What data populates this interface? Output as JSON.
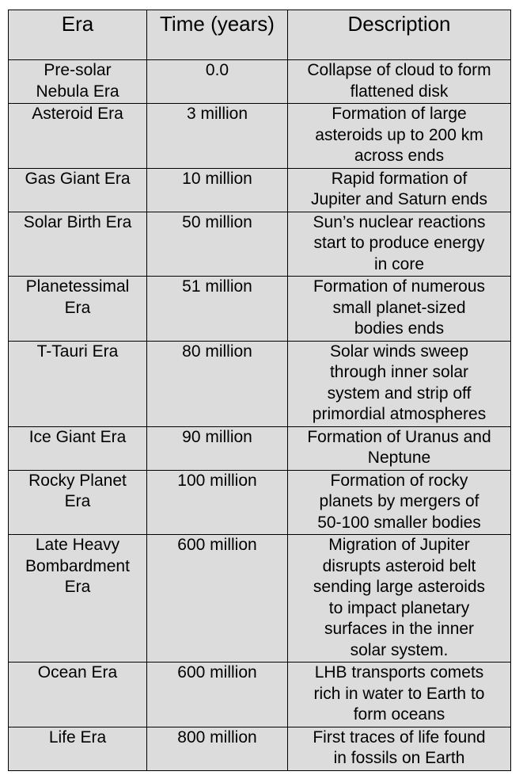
{
  "table": {
    "headers": [
      "Era",
      "Time (years)",
      "Description"
    ],
    "header_lines": [
      [
        "Era"
      ],
      [
        "Time",
        "(years)"
      ],
      [
        "Description"
      ]
    ],
    "rows": [
      {
        "era": [
          "Pre-solar",
          "Nebula Era"
        ],
        "time": "0.0",
        "description": [
          "Collapse of cloud to form",
          "flattened disk"
        ]
      },
      {
        "era": [
          "Asteroid Era"
        ],
        "time": "3 million",
        "description": [
          "Formation of large",
          "asteroids up to 200 km",
          "across ends"
        ]
      },
      {
        "era": [
          "Gas Giant Era"
        ],
        "time": "10 million",
        "description": [
          "Rapid formation of",
          "Jupiter and Saturn ends"
        ]
      },
      {
        "era": [
          "Solar Birth Era"
        ],
        "time": "50 million",
        "description": [
          "Sun’s nuclear reactions",
          "start to produce energy",
          "in core"
        ]
      },
      {
        "era": [
          "Planetessimal",
          "Era"
        ],
        "time": "51 million",
        "description": [
          "Formation of numerous",
          "small planet-sized",
          "bodies ends"
        ]
      },
      {
        "era": [
          "T-Tauri Era"
        ],
        "time": "80 million",
        "description": [
          "Solar winds sweep",
          "through inner solar",
          "system and strip off",
          "primordial atmospheres"
        ]
      },
      {
        "era": [
          "Ice Giant Era"
        ],
        "time": "90 million",
        "description": [
          "Formation of Uranus and",
          "Neptune"
        ]
      },
      {
        "era": [
          "Rocky Planet",
          "Era"
        ],
        "time": "100 million",
        "description": [
          "Formation of rocky",
          "planets by mergers of",
          "50-100 smaller bodies"
        ]
      },
      {
        "era": [
          "Late Heavy",
          "Bombardment",
          "Era"
        ],
        "time": "600 million",
        "description": [
          "Migration of Jupiter",
          "disrupts asteroid belt",
          "sending large asteroids",
          "to impact planetary",
          "surfaces in the inner",
          "solar system."
        ]
      },
      {
        "era": [
          "Ocean Era"
        ],
        "time": "600 million",
        "description": [
          "LHB transports comets",
          "rich in water to Earth to",
          "form oceans"
        ]
      },
      {
        "era": [
          "Life Era"
        ],
        "time": "800 million",
        "description": [
          "First traces of life found",
          "in fossils on Earth"
        ]
      }
    ]
  }
}
